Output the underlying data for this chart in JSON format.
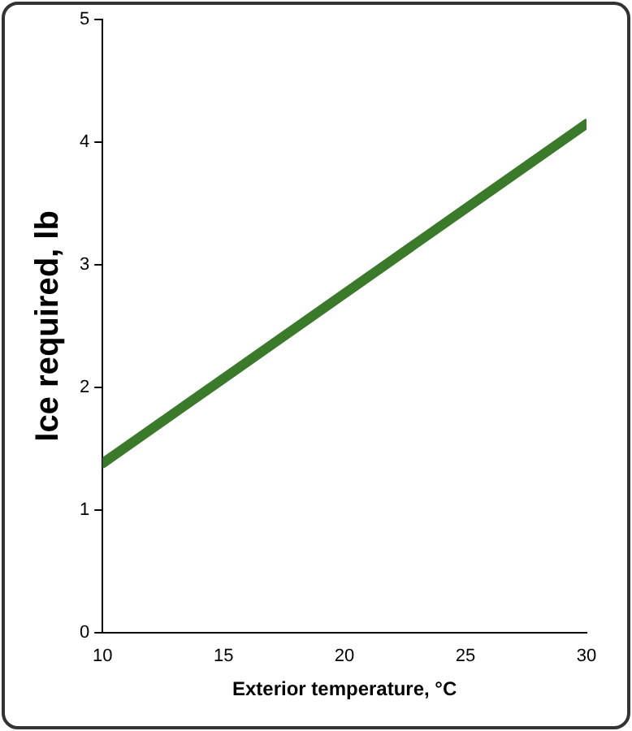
{
  "chart_data": {
    "type": "line",
    "xlabel": "Exterior temperature, °C",
    "ylabel": "Ice required, lb",
    "x": [
      10,
      30
    ],
    "series": [
      {
        "color": "#3a7a2a",
        "values": [
          1.38,
          4.15
        ]
      }
    ],
    "xlim": [
      10,
      30
    ],
    "xticks": [
      10,
      15,
      20,
      25,
      30
    ],
    "ylim": [
      0,
      5
    ],
    "yticks": [
      0,
      1,
      2,
      3,
      4,
      5
    ],
    "grid": false,
    "legend": false,
    "marker": "none",
    "line_style": "solid"
  }
}
